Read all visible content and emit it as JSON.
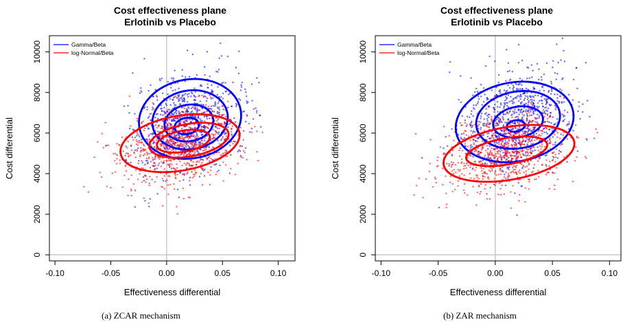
{
  "chart_data": [
    {
      "type": "scatter",
      "title": "Cost effectiveness plane",
      "subtitle": "Erlotinib  vs  Placebo",
      "xlabel": "Effectiveness differential",
      "ylabel": "Cost differential",
      "xlim": [
        -0.105,
        0.115
      ],
      "ylim": [
        -300,
        10800
      ],
      "xticks": [
        -0.1,
        -0.05,
        0.0,
        0.05,
        0.1
      ],
      "xtick_labels": [
        "-0.10",
        "-0.05",
        "0.00",
        "0.05",
        "0.10"
      ],
      "yticks": [
        0,
        2000,
        4000,
        6000,
        8000,
        10000
      ],
      "ytick_labels": [
        "0",
        "2000",
        "4000",
        "6000",
        "8000",
        "10000"
      ],
      "reference_lines": {
        "x": 0,
        "y": 0
      },
      "legend_position": "top-left",
      "caption": "(a)  ZCAR mechanism",
      "series": [
        {
          "name": "Gamma/Beta",
          "color": "#0000ff",
          "n_points": 850,
          "mean": [
            0.02,
            6500
          ],
          "sd": [
            0.024,
            1250
          ],
          "corr": 0.3,
          "contours": [
            {
              "center": [
                0.021,
                6700
              ],
              "rx": 0.046,
              "ry": 1950
            },
            {
              "center": [
                0.021,
                6650
              ],
              "rx": 0.034,
              "ry": 1450
            },
            {
              "center": [
                0.02,
                6500
              ],
              "rx": 0.022,
              "ry": 900
            },
            {
              "center": [
                0.018,
                6350
              ],
              "rx": 0.011,
              "ry": 400
            }
          ]
        },
        {
          "name": "log-Normal/Beta",
          "color": "#ff0000",
          "n_points": 850,
          "mean": [
            0.012,
            5400
          ],
          "sd": [
            0.026,
            1000
          ],
          "corr": 0.25,
          "contours": [
            {
              "center": [
                0.012,
                5500
              ],
              "rx": 0.054,
              "ry": 1350
            },
            {
              "center": [
                0.02,
                5650
              ],
              "rx": 0.036,
              "ry": 800
            },
            {
              "center": [
                0.015,
                5600
              ],
              "rx": 0.024,
              "ry": 520
            }
          ]
        }
      ]
    },
    {
      "type": "scatter",
      "title": "Cost effectiveness plane",
      "subtitle": "Erlotinib  vs  Placebo",
      "xlabel": "Effectiveness differential",
      "ylabel": "Cost differential",
      "xlim": [
        -0.105,
        0.11
      ],
      "ylim": [
        -300,
        10800
      ],
      "xticks": [
        -0.1,
        -0.05,
        0.0,
        0.05,
        0.1
      ],
      "xtick_labels": [
        "-0.10",
        "-0.05",
        "0.00",
        "0.05",
        "0.10"
      ],
      "yticks": [
        0,
        2000,
        4000,
        6000,
        8000,
        10000
      ],
      "ytick_labels": [
        "0",
        "2000",
        "4000",
        "6000",
        "8000",
        "10000"
      ],
      "reference_lines": {
        "x": 0,
        "y": 0
      },
      "legend_position": "top-left",
      "caption": "(b)  ZAR mechanism",
      "series": [
        {
          "name": "Gamma/Beta",
          "color": "#0000ff",
          "n_points": 850,
          "mean": [
            0.018,
            6600
          ],
          "sd": [
            0.025,
            1300
          ],
          "corr": 0.3,
          "contours": [
            {
              "center": [
                0.017,
                6550
              ],
              "rx": 0.052,
              "ry": 1950
            },
            {
              "center": [
                0.02,
                6650
              ],
              "rx": 0.037,
              "ry": 1400
            },
            {
              "center": [
                0.02,
                6550
              ],
              "rx": 0.022,
              "ry": 750
            },
            {
              "center": [
                0.018,
                6350
              ],
              "rx": 0.008,
              "ry": 280
            }
          ]
        },
        {
          "name": "log-Normal/Beta",
          "color": "#ff0000",
          "n_points": 850,
          "mean": [
            0.008,
            5150
          ],
          "sd": [
            0.027,
            1050
          ],
          "corr": 0.25,
          "contours": [
            {
              "center": [
                0.012,
                5000
              ],
              "rx": 0.058,
              "ry": 1300
            },
            {
              "center": [
                0.01,
                5100
              ],
              "rx": 0.036,
              "ry": 650
            }
          ]
        }
      ]
    }
  ]
}
